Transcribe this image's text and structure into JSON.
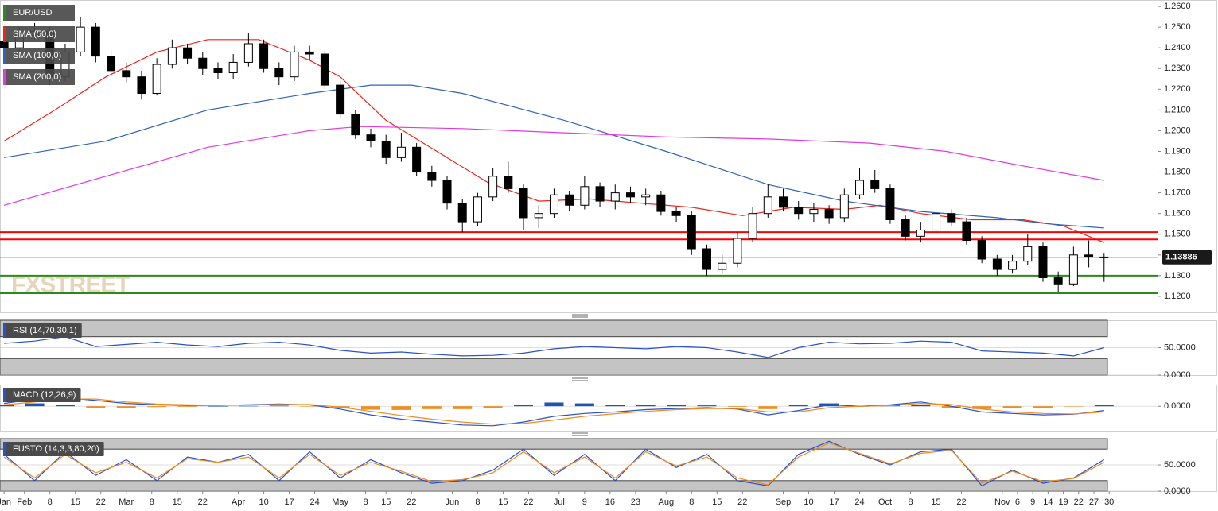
{
  "chart_data": [
    {
      "type": "candlestick",
      "title": "EUR/USD",
      "x": [
        0,
        3,
        6,
        9,
        12,
        15,
        18,
        21,
        24,
        27,
        30,
        33,
        36,
        39,
        42,
        45,
        48,
        51,
        54,
        57,
        60,
        63,
        66,
        69,
        72,
        75,
        78,
        81,
        84,
        87,
        90,
        93,
        96,
        99,
        102,
        105,
        108,
        111,
        114,
        117,
        120,
        123,
        126,
        129,
        132,
        135,
        138,
        141,
        144,
        147,
        150,
        153,
        156,
        159,
        162,
        165,
        168,
        171,
        174,
        177,
        180,
        183,
        186,
        189,
        192,
        195,
        198,
        201,
        204,
        207,
        210,
        213,
        216
      ],
      "open": [
        1.243,
        1.24,
        1.246,
        1.248,
        1.226,
        1.238,
        1.25,
        1.236,
        1.229,
        1.226,
        1.218,
        1.232,
        1.24,
        1.235,
        1.23,
        1.228,
        1.233,
        1.242,
        1.23,
        1.226,
        1.238,
        1.237,
        1.222,
        1.208,
        1.198,
        1.195,
        1.187,
        1.192,
        1.18,
        1.176,
        1.165,
        1.156,
        1.168,
        1.178,
        1.172,
        1.158,
        1.16,
        1.169,
        1.164,
        1.173,
        1.166,
        1.17,
        1.168,
        1.169,
        1.161,
        1.159,
        1.143,
        1.133,
        1.136,
        1.148,
        1.16,
        1.168,
        1.163,
        1.16,
        1.162,
        1.158,
        1.169,
        1.176,
        1.172,
        1.157,
        1.149,
        1.152,
        1.16,
        1.156,
        1.147,
        1.138,
        1.133,
        1.137,
        1.144,
        1.129,
        1.126,
        1.14,
        1.139
      ],
      "high": [
        1.247,
        1.25,
        1.252,
        1.25,
        1.242,
        1.255,
        1.252,
        1.239,
        1.233,
        1.229,
        1.235,
        1.244,
        1.242,
        1.238,
        1.233,
        1.237,
        1.247,
        1.244,
        1.233,
        1.241,
        1.241,
        1.239,
        1.224,
        1.21,
        1.201,
        1.198,
        1.199,
        1.194,
        1.183,
        1.178,
        1.167,
        1.17,
        1.182,
        1.185,
        1.174,
        1.164,
        1.172,
        1.171,
        1.178,
        1.175,
        1.174,
        1.173,
        1.172,
        1.171,
        1.163,
        1.161,
        1.145,
        1.14,
        1.151,
        1.163,
        1.174,
        1.172,
        1.166,
        1.165,
        1.164,
        1.172,
        1.182,
        1.181,
        1.174,
        1.159,
        1.156,
        1.163,
        1.162,
        1.158,
        1.149,
        1.14,
        1.14,
        1.15,
        1.146,
        1.132,
        1.144,
        1.147,
        1.141
      ],
      "low": [
        1.237,
        1.238,
        1.244,
        1.222,
        1.224,
        1.236,
        1.233,
        1.226,
        1.223,
        1.215,
        1.217,
        1.23,
        1.232,
        1.227,
        1.225,
        1.225,
        1.231,
        1.228,
        1.222,
        1.224,
        1.234,
        1.22,
        1.206,
        1.196,
        1.192,
        1.184,
        1.185,
        1.178,
        1.173,
        1.162,
        1.151,
        1.154,
        1.166,
        1.17,
        1.152,
        1.153,
        1.158,
        1.161,
        1.162,
        1.163,
        1.162,
        1.165,
        1.164,
        1.159,
        1.156,
        1.14,
        1.13,
        1.131,
        1.134,
        1.146,
        1.158,
        1.161,
        1.157,
        1.156,
        1.155,
        1.156,
        1.167,
        1.17,
        1.155,
        1.147,
        1.146,
        1.15,
        1.154,
        1.145,
        1.136,
        1.13,
        1.131,
        1.135,
        1.127,
        1.122,
        1.125,
        1.134,
        1.127
      ],
      "close": [
        1.24,
        1.246,
        1.248,
        1.226,
        1.238,
        1.25,
        1.236,
        1.229,
        1.226,
        1.218,
        1.232,
        1.24,
        1.235,
        1.23,
        1.228,
        1.233,
        1.242,
        1.23,
        1.226,
        1.238,
        1.237,
        1.222,
        1.208,
        1.198,
        1.195,
        1.187,
        1.192,
        1.18,
        1.176,
        1.165,
        1.156,
        1.168,
        1.178,
        1.172,
        1.158,
        1.16,
        1.169,
        1.164,
        1.173,
        1.166,
        1.17,
        1.168,
        1.169,
        1.161,
        1.159,
        1.143,
        1.133,
        1.136,
        1.148,
        1.16,
        1.168,
        1.163,
        1.16,
        1.162,
        1.158,
        1.169,
        1.176,
        1.172,
        1.157,
        1.149,
        1.152,
        1.16,
        1.156,
        1.147,
        1.138,
        1.133,
        1.137,
        1.144,
        1.129,
        1.126,
        1.14,
        1.139,
        1.1389
      ],
      "series": [
        {
          "name": "SMA (50,0)",
          "color": "#e8261c",
          "x": [
            0,
            10,
            20,
            30,
            40,
            50,
            60,
            66,
            75,
            85,
            95,
            105,
            115,
            125,
            135,
            145,
            155,
            165,
            172,
            180,
            190,
            200,
            208,
            216
          ],
          "values": [
            1.195,
            1.21,
            1.226,
            1.238,
            1.244,
            1.244,
            1.234,
            1.226,
            1.205,
            1.19,
            1.175,
            1.166,
            1.167,
            1.165,
            1.163,
            1.159,
            1.163,
            1.162,
            1.164,
            1.16,
            1.157,
            1.157,
            1.154,
            1.146
          ]
        },
        {
          "name": "SMA (100,0)",
          "color": "#2f64b8",
          "x": [
            0,
            20,
            40,
            60,
            72,
            80,
            90,
            110,
            130,
            150,
            165,
            180,
            195,
            205,
            216
          ],
          "values": [
            1.187,
            1.195,
            1.21,
            1.218,
            1.222,
            1.222,
            1.218,
            1.205,
            1.19,
            1.174,
            1.166,
            1.161,
            1.158,
            1.155,
            1.153
          ]
        },
        {
          "name": "SMA (200,0)",
          "color": "#e03ae0",
          "x": [
            0,
            20,
            40,
            60,
            70,
            90,
            110,
            130,
            150,
            170,
            185,
            200,
            216
          ],
          "values": [
            1.164,
            1.178,
            1.192,
            1.2,
            1.202,
            1.201,
            1.199,
            1.197,
            1.196,
            1.194,
            1.19,
            1.183,
            1.176
          ]
        }
      ],
      "levels": [
        {
          "value": 1.151,
          "color": "#ff0000"
        },
        {
          "value": 1.1475,
          "color": "#ff0000"
        },
        {
          "value": 1.13,
          "color": "#2a8a1a"
        },
        {
          "value": 1.1215,
          "color": "#2a8a1a"
        }
      ],
      "last_price": 1.13886,
      "watermark": "FXSTREET",
      "xlim": [
        -0.8,
        226.5
      ],
      "ylim": [
        1.1123,
        1.2631
      ],
      "yticks": [
        {
          "value": 1.26,
          "label": "1.2600"
        },
        {
          "value": 1.25,
          "label": "1.2500"
        },
        {
          "value": 1.24,
          "label": "1.2400"
        },
        {
          "value": 1.23,
          "label": "1.2300"
        },
        {
          "value": 1.22,
          "label": "1.2200"
        },
        {
          "value": 1.21,
          "label": "1.2100"
        },
        {
          "value": 1.2,
          "label": "1.2000"
        },
        {
          "value": 1.19,
          "label": "1.1900"
        },
        {
          "value": 1.18,
          "label": "1.1800"
        },
        {
          "value": 1.17,
          "label": "1.1700"
        },
        {
          "value": 1.16,
          "label": "1.1600"
        },
        {
          "value": 1.15,
          "label": "1.1500"
        },
        {
          "value": 1.14,
          "label": "1.1400"
        },
        {
          "value": 1.13,
          "label": "1.1300"
        },
        {
          "value": 1.12,
          "label": "1.1200"
        }
      ],
      "xticks": [
        {
          "value": 0,
          "label": "Jan"
        },
        {
          "value": 4,
          "label": "Feb"
        },
        {
          "value": 9,
          "label": "8"
        },
        {
          "value": 14,
          "label": "15"
        },
        {
          "value": 19,
          "label": "22"
        },
        {
          "value": 24,
          "label": "Mar"
        },
        {
          "value": 29,
          "label": "8"
        },
        {
          "value": 34,
          "label": "15"
        },
        {
          "value": 39,
          "label": "22"
        },
        {
          "value": 46,
          "label": "Apr"
        },
        {
          "value": 51,
          "label": "10"
        },
        {
          "value": 56,
          "label": "17"
        },
        {
          "value": 61,
          "label": "24"
        },
        {
          "value": 66,
          "label": "May"
        },
        {
          "value": 71,
          "label": "8"
        },
        {
          "value": 75,
          "label": "15"
        },
        {
          "value": 80,
          "label": "22"
        },
        {
          "value": 88,
          "label": "Jun"
        },
        {
          "value": 93,
          "label": "8"
        },
        {
          "value": 98,
          "label": "15"
        },
        {
          "value": 103,
          "label": "22"
        },
        {
          "value": 109,
          "label": "Jul"
        },
        {
          "value": 114,
          "label": "9"
        },
        {
          "value": 119,
          "label": "16"
        },
        {
          "value": 124,
          "label": "23"
        },
        {
          "value": 130,
          "label": "Aug"
        },
        {
          "value": 135,
          "label": "8"
        },
        {
          "value": 140,
          "label": "15"
        },
        {
          "value": 145,
          "label": "22"
        },
        {
          "value": 153,
          "label": "Sep"
        },
        {
          "value": 158,
          "label": "10"
        },
        {
          "value": 163,
          "label": "17"
        },
        {
          "value": 168,
          "label": "24"
        },
        {
          "value": 173,
          "label": "Oct"
        },
        {
          "value": 178,
          "label": "8"
        },
        {
          "value": 183,
          "label": "15"
        },
        {
          "value": 188,
          "label": "22"
        },
        {
          "value": 196,
          "label": "Nov"
        },
        {
          "value": 199,
          "label": "6"
        },
        {
          "value": 202,
          "label": "9"
        },
        {
          "value": 205,
          "label": "14"
        },
        {
          "value": 208,
          "label": "19"
        },
        {
          "value": 211,
          "label": "22"
        },
        {
          "value": 214,
          "label": "27"
        },
        {
          "value": 217,
          "label": "30"
        }
      ]
    },
    {
      "type": "line",
      "title": "RSI (14,70,30,1)",
      "x": [
        0,
        6,
        12,
        18,
        24,
        30,
        36,
        42,
        48,
        54,
        60,
        66,
        72,
        78,
        84,
        90,
        96,
        102,
        108,
        114,
        120,
        126,
        132,
        138,
        144,
        150,
        156,
        162,
        168,
        174,
        180,
        186,
        192,
        198,
        204,
        210,
        216
      ],
      "series": [
        {
          "color": "#2b50c8",
          "values": [
            58,
            62,
            70,
            52,
            56,
            60,
            55,
            52,
            58,
            60,
            55,
            45,
            40,
            42,
            38,
            35,
            36,
            40,
            48,
            52,
            50,
            48,
            52,
            50,
            42,
            32,
            50,
            60,
            57,
            58,
            62,
            60,
            44,
            42,
            40,
            35,
            50
          ]
        }
      ],
      "bands": [
        70,
        30
      ],
      "ylim": [
        0,
        100
      ],
      "yticks": [
        {
          "value": 50,
          "label": "50.0000"
        },
        {
          "value": 0,
          "label": "0.0000"
        }
      ]
    },
    {
      "type": "macd",
      "title": "MACD (12,26,9)",
      "x": [
        0,
        6,
        12,
        18,
        24,
        30,
        36,
        42,
        48,
        54,
        60,
        66,
        72,
        78,
        84,
        90,
        96,
        102,
        108,
        114,
        120,
        126,
        132,
        138,
        144,
        150,
        156,
        162,
        168,
        174,
        180,
        186,
        192,
        198,
        204,
        210,
        216
      ],
      "histogram": [
        0.0005,
        0.001,
        0.0005,
        -0.0005,
        -0.0005,
        -0.0003,
        -0.0002,
        0.0,
        0.0001,
        0.0002,
        -0.0001,
        -0.0007,
        -0.0012,
        -0.0013,
        -0.001,
        -0.001,
        -0.0006,
        0.0005,
        0.0013,
        0.001,
        0.0006,
        0.0006,
        0.0004,
        0.0003,
        -0.0002,
        -0.001,
        0.0005,
        0.001,
        0.0,
        0.0003,
        0.0005,
        -0.0006,
        -0.001,
        -0.0005,
        -0.0005,
        -0.0001,
        0.0005
      ],
      "histogram_colors": [
        "#1f55b0",
        "#f0901f"
      ],
      "series": [
        {
          "color": "#2b50c8",
          "values": [
            0.001,
            0.0025,
            0.003,
            0.002,
            0.001,
            0.0005,
            0.0003,
            0.0003,
            0.0005,
            0.0008,
            0.0005,
            -0.001,
            -0.003,
            -0.0045,
            -0.0055,
            -0.0065,
            -0.0068,
            -0.0055,
            -0.0035,
            -0.0025,
            -0.002,
            -0.0012,
            -0.0008,
            -0.0005,
            -0.001,
            -0.003,
            -0.0015,
            0.0005,
            0.0,
            0.0005,
            0.0015,
            0.0,
            -0.002,
            -0.0025,
            -0.003,
            -0.0028,
            -0.0015
          ]
        },
        {
          "color": "#f08a1c",
          "values": [
            0.0005,
            0.0015,
            0.0025,
            0.0025,
            0.0015,
            0.0008,
            0.0005,
            0.0003,
            0.0004,
            0.0006,
            0.0006,
            -0.0003,
            -0.0018,
            -0.0032,
            -0.0045,
            -0.0055,
            -0.0062,
            -0.006,
            -0.0048,
            -0.0035,
            -0.0026,
            -0.0018,
            -0.0012,
            -0.0008,
            -0.0008,
            -0.002,
            -0.002,
            -0.0005,
            0.0,
            0.0002,
            0.001,
            0.0006,
            -0.001,
            -0.002,
            -0.0025,
            -0.0027,
            -0.002
          ]
        }
      ],
      "ylim": [
        -0.0085,
        0.0075
      ],
      "yticks": [
        {
          "value": 0,
          "label": "0.0000"
        }
      ]
    },
    {
      "type": "line",
      "title": "FUSTO (14,3,3,80,20)",
      "x": [
        0,
        6,
        12,
        18,
        24,
        30,
        36,
        42,
        48,
        54,
        60,
        66,
        72,
        78,
        84,
        90,
        96,
        102,
        108,
        114,
        120,
        126,
        132,
        138,
        144,
        150,
        156,
        162,
        168,
        174,
        180,
        186,
        192,
        198,
        204,
        210,
        216
      ],
      "series": [
        {
          "color": "#2b50c8",
          "values": [
            70,
            20,
            75,
            30,
            60,
            20,
            65,
            55,
            70,
            20,
            75,
            25,
            60,
            35,
            15,
            20,
            40,
            80,
            30,
            70,
            20,
            80,
            45,
            70,
            20,
            10,
            70,
            95,
            70,
            50,
            75,
            80,
            10,
            40,
            15,
            25,
            60
          ]
        },
        {
          "color": "#f08a1c",
          "values": [
            65,
            25,
            70,
            35,
            55,
            25,
            62,
            55,
            65,
            25,
            70,
            30,
            55,
            38,
            18,
            22,
            35,
            75,
            35,
            65,
            25,
            75,
            48,
            65,
            25,
            12,
            65,
            92,
            72,
            52,
            72,
            78,
            15,
            38,
            18,
            24,
            55
          ]
        }
      ],
      "bands": [
        80,
        20
      ],
      "ylim": [
        0,
        100
      ],
      "yticks": [
        {
          "value": 50,
          "label": "50.0000"
        },
        {
          "value": 0,
          "label": "0.0000"
        }
      ]
    }
  ]
}
